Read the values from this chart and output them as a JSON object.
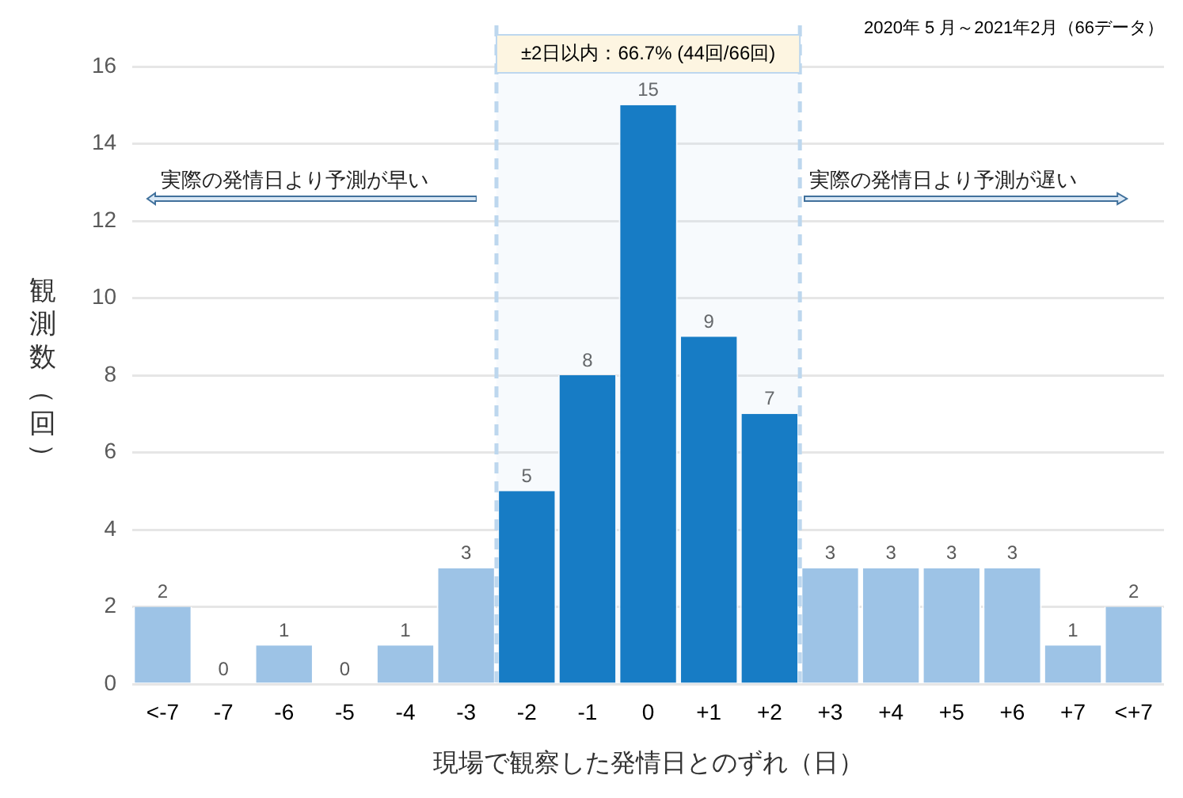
{
  "chart_data": {
    "type": "bar",
    "xlabel": "現場で観察した発情日とのずれ（日）",
    "ylabel": "観測数（回）",
    "categories": [
      "<-7",
      "-7",
      "-6",
      "-5",
      "-4",
      "-3",
      "-2",
      "-1",
      "0",
      "+1",
      "+2",
      "+3",
      "+4",
      "+5",
      "+6",
      "+7",
      "<+7"
    ],
    "values": [
      2,
      0,
      1,
      0,
      1,
      3,
      5,
      8,
      15,
      9,
      7,
      3,
      3,
      3,
      3,
      1,
      2
    ],
    "colors": [
      "#9dc3e6",
      "#9dc3e6",
      "#9dc3e6",
      "#9dc3e6",
      "#9dc3e6",
      "#9dc3e6",
      "#0070c0",
      "#0070c0",
      "#0070c0",
      "#0070c0",
      "#0070c0",
      "#9dc3e6",
      "#9dc3e6",
      "#9dc3e6",
      "#9dc3e6",
      "#9dc3e6",
      "#9dc3e6"
    ],
    "ylim": [
      0,
      16
    ],
    "yticks": [
      0,
      2,
      4,
      6,
      8,
      10,
      12,
      14,
      16
    ],
    "grid": "y",
    "data_labels": true,
    "bands": [
      {
        "axis": "x",
        "from": "-2",
        "to": "+2",
        "label": "±2日以内：66.7% (44回/66回)",
        "color": "#bdd7ee"
      }
    ],
    "annotations": [
      "2020年 5 月～2021年2月（66データ）",
      "実際の発情日より予測が早い",
      "実際の発情日より予測が遅い"
    ]
  }
}
